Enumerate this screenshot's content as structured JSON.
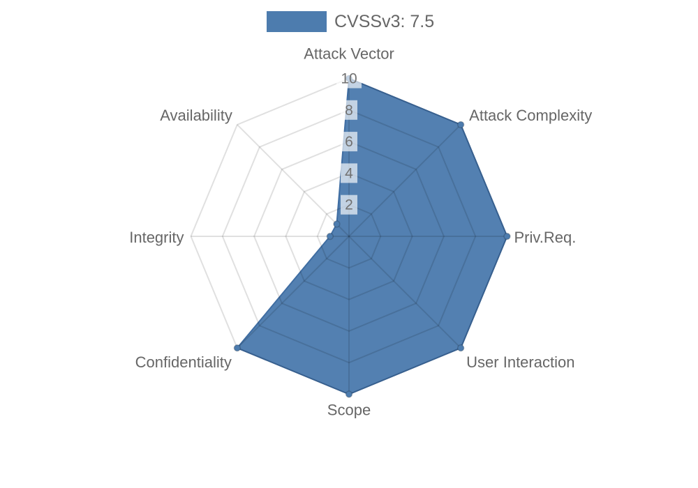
{
  "legend": {
    "items": [
      {
        "label": "CVSSv3: 7.5",
        "swatch_color": "#4d7cae"
      }
    ]
  },
  "chart_data": {
    "type": "radar",
    "title": "CVSSv3: 7.5",
    "axes": [
      "Attack Vector",
      "Attack Complexity",
      "Priv.Req.",
      "User Interaction",
      "Scope",
      "Confidentiality",
      "Integrity",
      "Availability"
    ],
    "series": [
      {
        "name": "CVSSv3: 7.5",
        "values": [
          10,
          10,
          10,
          10,
          10,
          10,
          1.2,
          1.1
        ]
      }
    ],
    "scale": {
      "min": 0,
      "max": 10,
      "ticks": [
        2,
        4,
        6,
        8,
        10
      ]
    },
    "layout_hints": {
      "grid": "polygon",
      "legend_position": "top",
      "start_axis": "top",
      "direction": "clockwise"
    },
    "colors": {
      "series_fill": "#4d7cae",
      "series_border": "#3f6da2",
      "marker_fill": "#4d7cae",
      "grid_line": "rgba(0,0,0,0.12)",
      "tick_backdrop": "rgba(255,255,255,0.65)",
      "tick_text": "#717171",
      "label_text": "#666666"
    }
  }
}
